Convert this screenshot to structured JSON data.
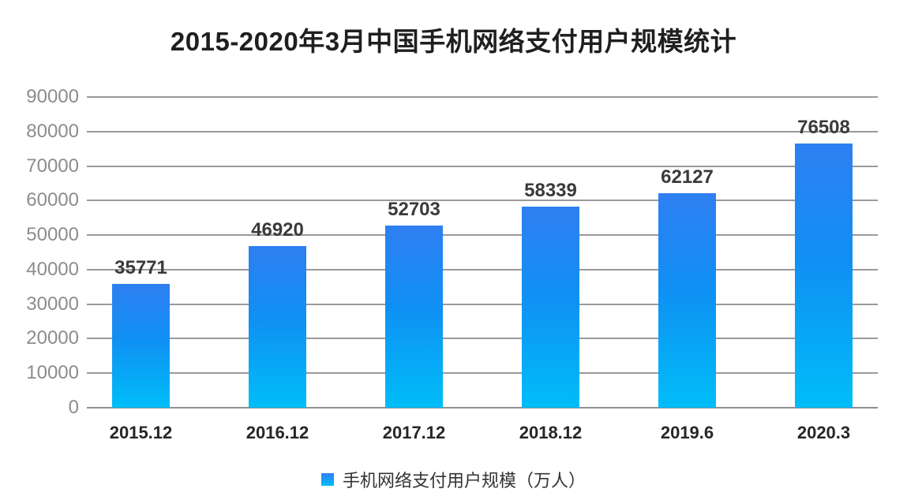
{
  "title": "2015-2020年3月中国手机网络支付用户规模统计",
  "legend": {
    "label": "手机网络支付用户规模（万人）"
  },
  "colors": {
    "bar_gradient_top": "#2f7ff1",
    "bar_gradient_bottom": "#00bdf8",
    "gridline": "#9a9a9a",
    "axis_line": "#8f8f8f",
    "y_tick_text": "#8c8c8c",
    "x_tick_text": "#262626",
    "value_label_text": "#3a3a3a",
    "title_text": "#1f1f1f",
    "background": "#ffffff"
  },
  "chart_data": {
    "type": "bar",
    "title": "2015-2020年3月中国手机网络支付用户规模统计",
    "categories": [
      "2015.12",
      "2016.12",
      "2017.12",
      "2018.12",
      "2019.6",
      "2020.3"
    ],
    "values": [
      35771,
      46920,
      52703,
      58339,
      62127,
      76508
    ],
    "series_name": "手机网络支付用户规模（万人）",
    "xlabel": "",
    "ylabel": "",
    "ylim": [
      0,
      90000
    ],
    "ytick_step": 10000,
    "yticks": [
      0,
      10000,
      20000,
      30000,
      40000,
      50000,
      60000,
      70000,
      80000,
      90000
    ],
    "grid": true,
    "legend_position": "bottom"
  }
}
